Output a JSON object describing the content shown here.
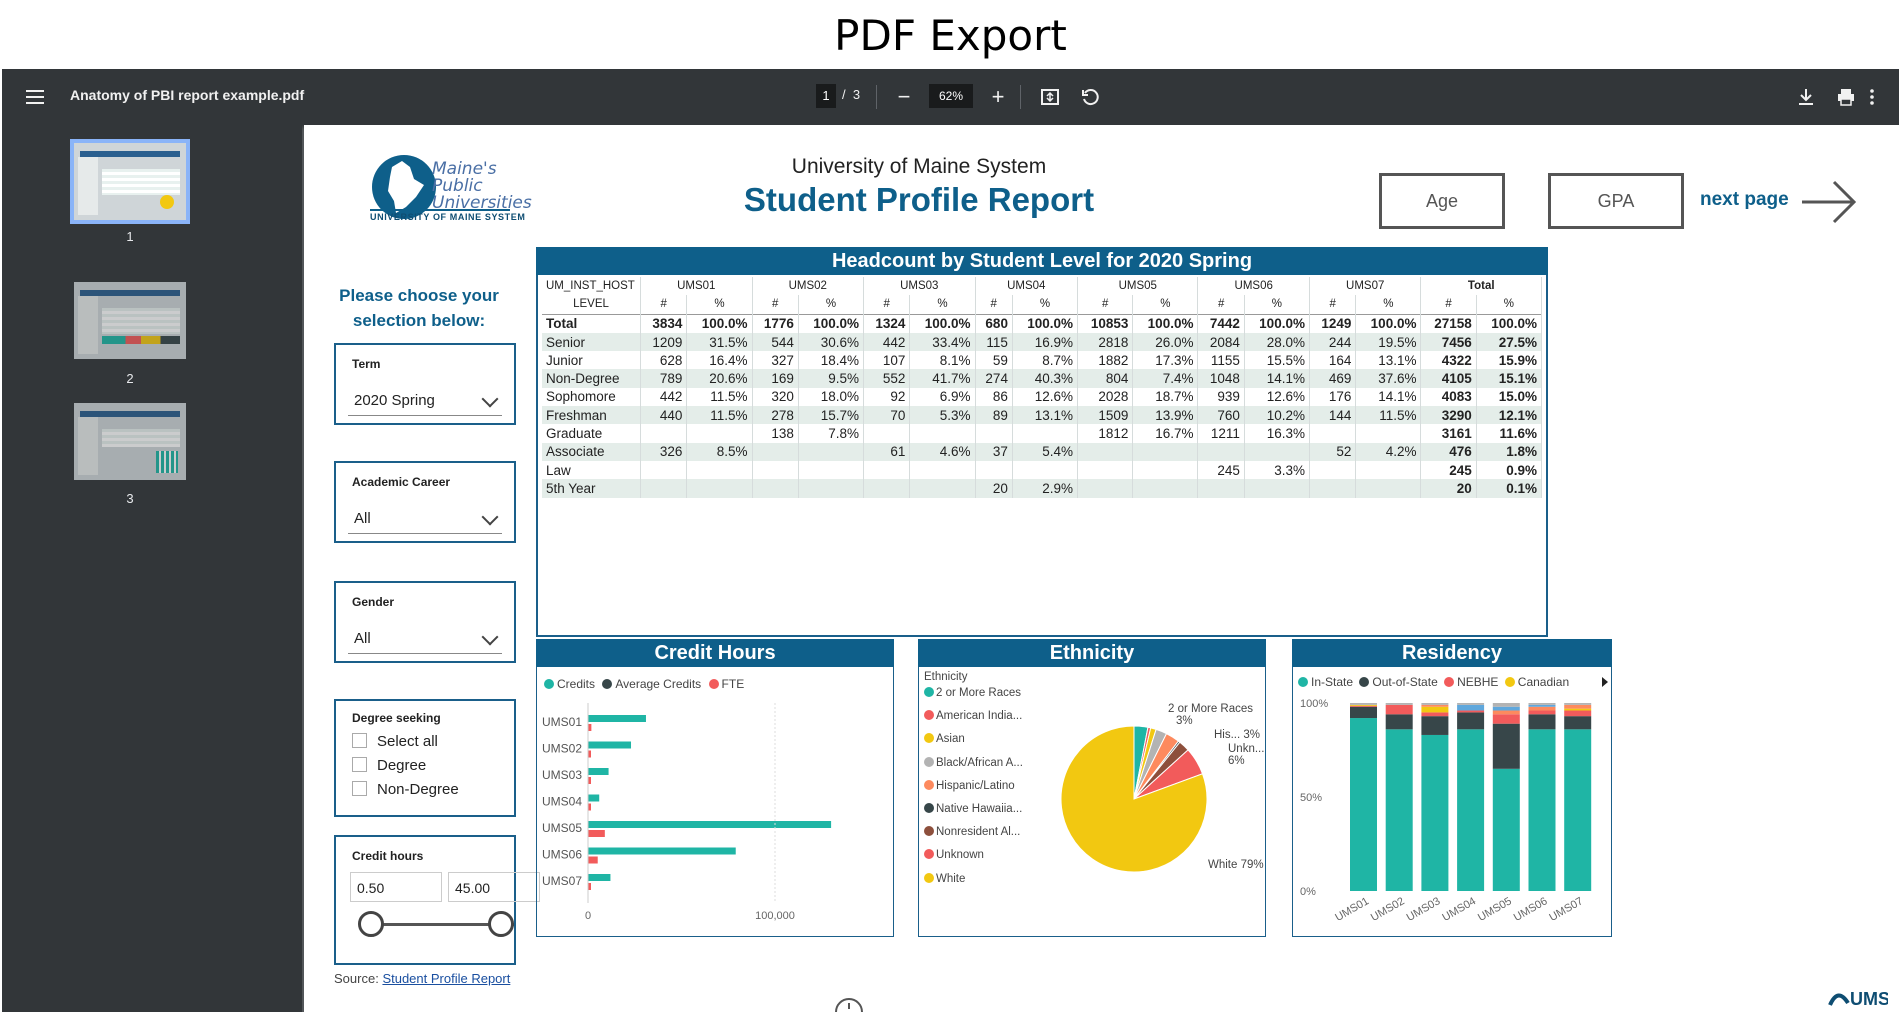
{
  "caption": "PDF Export",
  "viewer": {
    "title": "Anatomy of PBI report example.pdf",
    "page_current": "1",
    "page_sep": "/",
    "page_total": "3",
    "zoom": "62%",
    "thumbnails": [
      {
        "num": "1"
      },
      {
        "num": "2"
      },
      {
        "num": "3"
      }
    ]
  },
  "report": {
    "org": "University of Maine System",
    "title": "Student Profile Report",
    "logo_line1": "Maine's",
    "logo_line2": "Public",
    "logo_line3": "Universities",
    "logo_sub": "UNIVERSITY OF MAINE SYSTEM",
    "nav_age": "Age",
    "nav_gpa": "GPA",
    "next_page": "next page",
    "prompt": "Please choose your selection below:",
    "slicers": {
      "term": {
        "label": "Term",
        "value": "2020 Spring"
      },
      "career": {
        "label": "Academic Career",
        "value": "All"
      },
      "gender": {
        "label": "Gender",
        "value": "All"
      },
      "degree": {
        "label": "Degree seeking",
        "options": [
          "Select all",
          "Degree",
          "Non-Degree"
        ]
      },
      "credit": {
        "label": "Credit hours",
        "min": "0.50",
        "max": "45.00"
      }
    },
    "source_label": "Source:",
    "source_link": "Student Profile Report"
  },
  "table": {
    "title": "Headcount by Student Level for 2020 Spring",
    "host_label": "UM_INST_HOST",
    "level_label": "LEVEL",
    "hosts": [
      "UMS01",
      "UMS02",
      "UMS03",
      "UMS04",
      "UMS05",
      "UMS06",
      "UMS07",
      "Total"
    ],
    "sub_headers": [
      "#",
      "%"
    ],
    "rows": [
      {
        "label": "Total",
        "cells": [
          "3834",
          "100.0%",
          "1776",
          "100.0%",
          "1324",
          "100.0%",
          "680",
          "100.0%",
          "10853",
          "100.0%",
          "7442",
          "100.0%",
          "1249",
          "100.0%",
          "27158",
          "100.0%"
        ]
      },
      {
        "label": "Senior",
        "cells": [
          "1209",
          "31.5%",
          "544",
          "30.6%",
          "442",
          "33.4%",
          "115",
          "16.9%",
          "2818",
          "26.0%",
          "2084",
          "28.0%",
          "244",
          "19.5%",
          "7456",
          "27.5%"
        ]
      },
      {
        "label": "Junior",
        "cells": [
          "628",
          "16.4%",
          "327",
          "18.4%",
          "107",
          "8.1%",
          "59",
          "8.7%",
          "1882",
          "17.3%",
          "1155",
          "15.5%",
          "164",
          "13.1%",
          "4322",
          "15.9%"
        ]
      },
      {
        "label": "Non-Degree",
        "cells": [
          "789",
          "20.6%",
          "169",
          "9.5%",
          "552",
          "41.7%",
          "274",
          "40.3%",
          "804",
          "7.4%",
          "1048",
          "14.1%",
          "469",
          "37.6%",
          "4105",
          "15.1%"
        ]
      },
      {
        "label": "Sophomore",
        "cells": [
          "442",
          "11.5%",
          "320",
          "18.0%",
          "92",
          "6.9%",
          "86",
          "12.6%",
          "2028",
          "18.7%",
          "939",
          "12.6%",
          "176",
          "14.1%",
          "4083",
          "15.0%"
        ]
      },
      {
        "label": "Freshman",
        "cells": [
          "440",
          "11.5%",
          "278",
          "15.7%",
          "70",
          "5.3%",
          "89",
          "13.1%",
          "1509",
          "13.9%",
          "760",
          "10.2%",
          "144",
          "11.5%",
          "3290",
          "12.1%"
        ]
      },
      {
        "label": "Graduate",
        "cells": [
          "",
          "",
          "138",
          "7.8%",
          "",
          "",
          "",
          "",
          "1812",
          "16.7%",
          "1211",
          "16.3%",
          "",
          "",
          "3161",
          "11.6%"
        ]
      },
      {
        "label": "Associate",
        "cells": [
          "326",
          "8.5%",
          "",
          "",
          "61",
          "4.6%",
          "37",
          "5.4%",
          "",
          "",
          "",
          "",
          "52",
          "4.2%",
          "476",
          "1.8%"
        ]
      },
      {
        "label": "Law",
        "cells": [
          "",
          "",
          "",
          "",
          "",
          "",
          "",
          "",
          "",
          "",
          "245",
          "3.3%",
          "",
          "",
          "245",
          "0.9%"
        ]
      },
      {
        "label": "5th Year",
        "cells": [
          "",
          "",
          "",
          "",
          "",
          "",
          "20",
          "2.9%",
          "",
          "",
          "",
          "",
          "",
          "",
          "20",
          "0.1%"
        ]
      }
    ]
  },
  "credit_chart": {
    "title": "Credit Hours",
    "legend": [
      "Credits",
      "Average Credits",
      "FTE"
    ],
    "colors": {
      "credits": "#1fb5a5",
      "avg": "#374649",
      "fte": "#f25b5b"
    },
    "categories": [
      "UMS01",
      "UMS02",
      "UMS03",
      "UMS04",
      "UMS05",
      "UMS06",
      "UMS07"
    ],
    "credits": [
      31000,
      23000,
      11000,
      6000,
      130000,
      79000,
      12000
    ],
    "fte": [
      1800,
      1200,
      500,
      400,
      9000,
      5200,
      800
    ],
    "x_ticks": [
      "0",
      "100,000"
    ]
  },
  "ethnicity_chart": {
    "title": "Ethnicity",
    "legend_title": "Ethnicity",
    "items": [
      {
        "name": "2 or More Races",
        "color": "#1fb5a5",
        "pct": 3
      },
      {
        "name": "American India...",
        "color": "#f25b5b",
        "pct": 0.6
      },
      {
        "name": "Asian",
        "color": "#f2c811",
        "pct": 1.2
      },
      {
        "name": "Black/African A...",
        "color": "#b3b3b3",
        "pct": 2.4
      },
      {
        "name": "Hispanic/Latino",
        "color": "#fd8a5e",
        "pct": 3
      },
      {
        "name": "Native Hawaiia...",
        "color": "#374649",
        "pct": 0.4
      },
      {
        "name": "Nonresident Al...",
        "color": "#8d4f3c",
        "pct": 2.4
      },
      {
        "name": "Unknown",
        "color": "#f25b5b",
        "pct": 6
      },
      {
        "name": "White",
        "color": "#f2c811",
        "pct": 79
      }
    ],
    "labels": {
      "two_more": "2 or More Races",
      "two_more_pct": "3%",
      "his": "His... 3%",
      "unk": "Unkn...",
      "unk_pct": "6%",
      "white": "White 79%"
    }
  },
  "residency_chart": {
    "title": "Residency",
    "legend": [
      "In-State",
      "Out-of-State",
      "NEBHE",
      "Canadian"
    ],
    "colors": [
      "#1fb5a5",
      "#374649",
      "#f25b5b",
      "#f2c811"
    ],
    "extra_colors": [
      "#fd8a5e",
      "#5fa7dc",
      "#b3b3b3"
    ],
    "categories": [
      "UMS01",
      "UMS02",
      "UMS03",
      "UMS04",
      "UMS05",
      "UMS06",
      "UMS07"
    ],
    "y_ticks": [
      "100%",
      "50%",
      "0%"
    ],
    "stacks": [
      [
        92,
        6,
        0.5,
        0.5,
        0,
        0,
        1
      ],
      [
        86,
        8,
        5,
        0,
        0,
        0,
        1
      ],
      [
        83,
        10,
        2,
        3,
        1,
        0,
        1
      ],
      [
        86,
        9,
        1,
        0,
        0,
        3,
        1
      ],
      [
        65,
        24,
        5,
        0,
        2,
        2,
        2
      ],
      [
        86,
        8,
        2,
        0,
        2,
        1,
        1
      ],
      [
        86,
        7,
        3,
        1,
        2,
        0,
        1
      ]
    ]
  }
}
